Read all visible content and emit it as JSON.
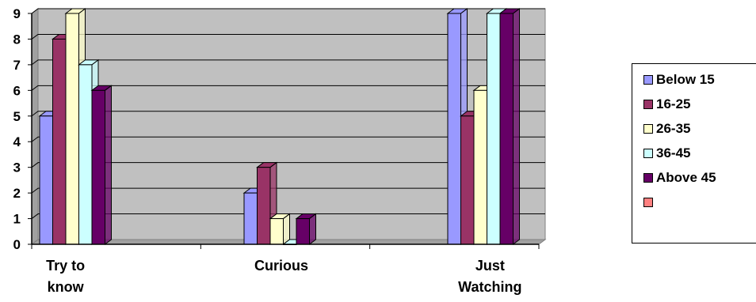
{
  "chart_data": {
    "type": "bar",
    "categories": [
      [
        "Try to",
        "know"
      ],
      [
        "Curious"
      ],
      [
        "Just",
        "Watching"
      ]
    ],
    "series": [
      {
        "name": "Below 15",
        "color": "#9999ff",
        "values": [
          5,
          2,
          9
        ]
      },
      {
        "name": "16-25",
        "color": "#993366",
        "values": [
          8,
          3,
          5
        ]
      },
      {
        "name": "26-35",
        "color": "#ffffcc",
        "values": [
          9,
          1,
          6
        ]
      },
      {
        "name": "36-45",
        "color": "#ccffff",
        "values": [
          7,
          0,
          9
        ]
      },
      {
        "name": "Above 45",
        "color": "#660066",
        "values": [
          6,
          1,
          9
        ]
      },
      {
        "name": "",
        "color": "#ff8080",
        "values": [
          null,
          null,
          null
        ]
      }
    ],
    "yticks": [
      0,
      1,
      2,
      3,
      4,
      5,
      6,
      7,
      8,
      9
    ],
    "ylim": [
      0,
      9
    ],
    "grid": true,
    "plot_background": "#c0c0c0",
    "legend_position": "right"
  }
}
